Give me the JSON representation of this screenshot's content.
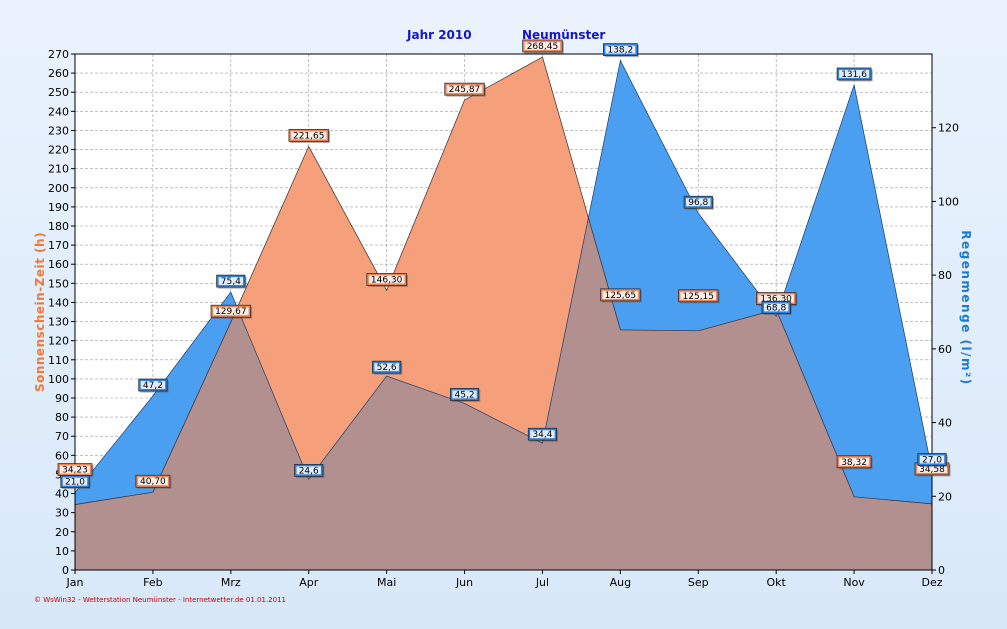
{
  "title_year": "Jahr  2010",
  "title_station": "Neumünster",
  "footer": "© WsWin32 - Wetterstation Neumünster - Internetwetter.de  01.01.2011",
  "chart_data": {
    "type": "area",
    "categories": [
      "Jan",
      "Feb",
      "Mrz",
      "Apr",
      "Mai",
      "Jun",
      "Jul",
      "Aug",
      "Sep",
      "Okt",
      "Nov",
      "Dez"
    ],
    "ylabel": "Sonnenschein-Zeit  (h)",
    "ylabel_right": "Regenmenge  (l/m²)",
    "ylim": [
      0,
      270
    ],
    "ylim_right": [
      0,
      140
    ],
    "yticks_left": [
      "0",
      "10",
      "20",
      "30",
      "40",
      "50",
      "60",
      "70",
      "80",
      "90",
      "100",
      "110",
      "120",
      "130",
      "140",
      "150",
      "160",
      "170",
      "180",
      "190",
      "200",
      "210",
      "220",
      "230",
      "240",
      "250",
      "260",
      "270"
    ],
    "yticks_right": [
      "0",
      "20",
      "40",
      "60",
      "80",
      "100",
      "120"
    ],
    "grid": true,
    "series": [
      {
        "axis": "left",
        "color": "#f5a07a",
        "label_bg": "#f08050",
        "values": [
          34.23,
          40.7,
          129.67,
          221.65,
          146.3,
          245.87,
          268.45,
          125.65,
          125.15,
          136.3,
          38.32,
          34.58
        ],
        "labels": [
          "34,23",
          "40,70",
          "129,67",
          "221,65",
          "146,30",
          "245,87",
          "268,45",
          "125,65",
          "125,15",
          "136,30",
          "38,32",
          "34,58"
        ]
      },
      {
        "axis": "right",
        "color": "#4a9ff0",
        "label_bg": "#2a80e0",
        "values": [
          21.0,
          47.2,
          75.4,
          24.6,
          52.6,
          45.2,
          34.4,
          138.2,
          96.8,
          68.8,
          131.6,
          27.0
        ],
        "labels": [
          "21,0",
          "47,2",
          "75,4",
          "24,6",
          "52,6",
          "45,2",
          "34,4",
          "138,2",
          "96,8",
          "68,8",
          "131,6",
          "27,0"
        ]
      }
    ],
    "overlap_color": "#b39090"
  }
}
